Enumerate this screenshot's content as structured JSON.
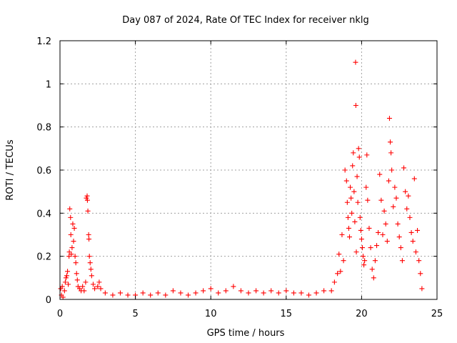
{
  "chart_data": {
    "type": "scatter",
    "title": "Day 087 of 2024, Rate Of TEC Index for receiver nklg",
    "xlabel": "GPS time / hours",
    "ylabel": "ROTI / TECUs",
    "xlim": [
      0,
      25
    ],
    "ylim": [
      0,
      1.2
    ],
    "xticks": [
      "0",
      "5",
      "10",
      "15",
      "20",
      "25"
    ],
    "yticks": [
      "0",
      "0.2",
      "0.4",
      "0.6",
      "0.8",
      "1",
      "1.2"
    ],
    "grid": true,
    "marker": "+",
    "color": "#ff0000",
    "series": [
      {
        "points": [
          [
            0.05,
            0.05
          ],
          [
            0.1,
            0.02
          ],
          [
            0.15,
            0.06
          ],
          [
            0.2,
            0.01
          ],
          [
            0.3,
            0.04
          ],
          [
            0.35,
            0.08
          ],
          [
            0.4,
            0.1
          ],
          [
            0.45,
            0.11
          ],
          [
            0.5,
            0.13
          ],
          [
            0.55,
            0.07
          ],
          [
            0.6,
            0.2
          ],
          [
            0.62,
            0.22
          ],
          [
            0.65,
            0.42
          ],
          [
            0.7,
            0.38
          ],
          [
            0.72,
            0.3
          ],
          [
            0.75,
            0.21
          ],
          [
            0.8,
            0.24
          ],
          [
            0.85,
            0.35
          ],
          [
            0.9,
            0.27
          ],
          [
            0.95,
            0.33
          ],
          [
            1.0,
            0.2
          ],
          [
            1.05,
            0.17
          ],
          [
            1.1,
            0.12
          ],
          [
            1.15,
            0.09
          ],
          [
            1.2,
            0.06
          ],
          [
            1.3,
            0.05
          ],
          [
            1.4,
            0.04
          ],
          [
            1.5,
            0.06
          ],
          [
            1.6,
            0.04
          ],
          [
            1.7,
            0.08
          ],
          [
            1.75,
            0.47
          ],
          [
            1.8,
            0.48
          ],
          [
            1.82,
            0.46
          ],
          [
            1.85,
            0.41
          ],
          [
            1.9,
            0.3
          ],
          [
            1.92,
            0.28
          ],
          [
            1.95,
            0.2
          ],
          [
            2.0,
            0.17
          ],
          [
            2.05,
            0.14
          ],
          [
            2.1,
            0.11
          ],
          [
            2.2,
            0.07
          ],
          [
            2.3,
            0.05
          ],
          [
            2.5,
            0.06
          ],
          [
            2.6,
            0.08
          ],
          [
            2.7,
            0.05
          ],
          [
            3.0,
            0.03
          ],
          [
            3.5,
            0.02
          ],
          [
            4.0,
            0.03
          ],
          [
            4.5,
            0.02
          ],
          [
            5.0,
            0.02
          ],
          [
            5.5,
            0.03
          ],
          [
            6.0,
            0.02
          ],
          [
            6.5,
            0.03
          ],
          [
            7.0,
            0.02
          ],
          [
            7.5,
            0.04
          ],
          [
            8.0,
            0.03
          ],
          [
            8.5,
            0.02
          ],
          [
            9.0,
            0.03
          ],
          [
            9.5,
            0.04
          ],
          [
            10.0,
            0.05
          ],
          [
            10.5,
            0.03
          ],
          [
            11.0,
            0.04
          ],
          [
            11.5,
            0.06
          ],
          [
            12.0,
            0.04
          ],
          [
            12.5,
            0.03
          ],
          [
            13.0,
            0.04
          ],
          [
            13.5,
            0.03
          ],
          [
            14.0,
            0.04
          ],
          [
            14.5,
            0.03
          ],
          [
            15.0,
            0.04
          ],
          [
            15.5,
            0.03
          ],
          [
            16.0,
            0.03
          ],
          [
            16.5,
            0.02
          ],
          [
            17.0,
            0.03
          ],
          [
            17.5,
            0.04
          ],
          [
            18.0,
            0.04
          ],
          [
            18.2,
            0.08
          ],
          [
            18.4,
            0.12
          ],
          [
            18.5,
            0.21
          ],
          [
            18.6,
            0.13
          ],
          [
            18.7,
            0.3
          ],
          [
            18.8,
            0.18
          ],
          [
            18.9,
            0.6
          ],
          [
            19.0,
            0.55
          ],
          [
            19.05,
            0.45
          ],
          [
            19.1,
            0.38
          ],
          [
            19.15,
            0.33
          ],
          [
            19.2,
            0.29
          ],
          [
            19.25,
            0.52
          ],
          [
            19.3,
            0.47
          ],
          [
            19.35,
            0.4
          ],
          [
            19.4,
            0.62
          ],
          [
            19.45,
            0.68
          ],
          [
            19.5,
            0.5
          ],
          [
            19.55,
            0.36
          ],
          [
            19.6,
            1.1
          ],
          [
            19.62,
            0.9
          ],
          [
            19.65,
            0.22
          ],
          [
            19.7,
            0.57
          ],
          [
            19.75,
            0.45
          ],
          [
            19.8,
            0.7
          ],
          [
            19.85,
            0.66
          ],
          [
            19.9,
            0.38
          ],
          [
            19.95,
            0.32
          ],
          [
            20.0,
            0.28
          ],
          [
            20.05,
            0.24
          ],
          [
            20.1,
            0.2
          ],
          [
            20.15,
            0.16
          ],
          [
            20.2,
            0.18
          ],
          [
            20.3,
            0.52
          ],
          [
            20.35,
            0.67
          ],
          [
            20.4,
            0.46
          ],
          [
            20.5,
            0.33
          ],
          [
            20.6,
            0.24
          ],
          [
            20.7,
            0.14
          ],
          [
            20.8,
            0.1
          ],
          [
            20.9,
            0.18
          ],
          [
            21.0,
            0.25
          ],
          [
            21.1,
            0.31
          ],
          [
            21.2,
            0.58
          ],
          [
            21.3,
            0.46
          ],
          [
            21.4,
            0.3
          ],
          [
            21.5,
            0.41
          ],
          [
            21.6,
            0.35
          ],
          [
            21.7,
            0.27
          ],
          [
            21.8,
            0.55
          ],
          [
            21.85,
            0.84
          ],
          [
            21.9,
            0.73
          ],
          [
            21.95,
            0.68
          ],
          [
            22.0,
            0.6
          ],
          [
            22.1,
            0.43
          ],
          [
            22.2,
            0.52
          ],
          [
            22.3,
            0.47
          ],
          [
            22.4,
            0.35
          ],
          [
            22.5,
            0.29
          ],
          [
            22.6,
            0.24
          ],
          [
            22.7,
            0.18
          ],
          [
            22.8,
            0.61
          ],
          [
            22.9,
            0.5
          ],
          [
            23.0,
            0.42
          ],
          [
            23.1,
            0.48
          ],
          [
            23.2,
            0.38
          ],
          [
            23.3,
            0.31
          ],
          [
            23.4,
            0.27
          ],
          [
            23.5,
            0.56
          ],
          [
            23.6,
            0.22
          ],
          [
            23.7,
            0.32
          ],
          [
            23.8,
            0.18
          ],
          [
            23.9,
            0.12
          ],
          [
            24.0,
            0.05
          ]
        ]
      }
    ]
  }
}
